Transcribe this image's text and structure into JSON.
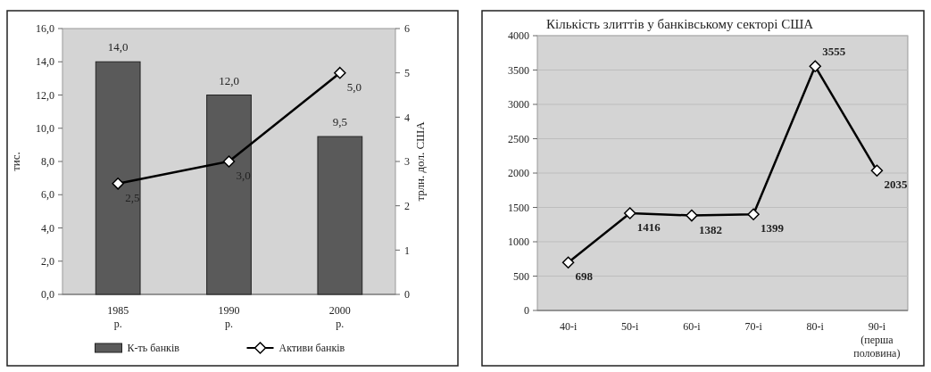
{
  "chart_data": [
    {
      "type": "bar",
      "categories": [
        "1985 р.",
        "1990 р.",
        "2000 р."
      ],
      "ylabel": "тис.",
      "y2label": "трлн. дол. США",
      "ylim": [
        0,
        16
      ],
      "yticks": [
        {
          "value": 0,
          "label": "0,0"
        },
        {
          "value": 2,
          "label": "2,0"
        },
        {
          "value": 4,
          "label": "4,0"
        },
        {
          "value": 6,
          "label": "6,0"
        },
        {
          "value": 8,
          "label": "8,0"
        },
        {
          "value": 10,
          "label": "10,0"
        },
        {
          "value": 12,
          "label": "12,0"
        },
        {
          "value": 14,
          "label": "14,0"
        },
        {
          "value": 16,
          "label": "16,0"
        }
      ],
      "y2lim": [
        0,
        6
      ],
      "y2ticks": [
        0,
        1,
        2,
        3,
        4,
        5,
        6
      ],
      "legend": "bottom",
      "marker": "diamond",
      "series": [
        {
          "name": "К-ть банків",
          "color": "#5a5a5a",
          "values": [
            14.0,
            12.0,
            9.5
          ],
          "value_labels": [
            "14,0",
            "12,0",
            "9,5"
          ]
        },
        {
          "name": "Активи банків",
          "type": "line",
          "axis": "y2",
          "color": "#000000",
          "values": [
            2.5,
            3.0,
            5.0
          ],
          "value_labels": [
            "2,5",
            "3,0",
            "5,0"
          ]
        }
      ]
    },
    {
      "type": "line",
      "title": "Кількість злиттів у банківському секторі США",
      "categories": [
        "40-і",
        "50-і",
        "60-і",
        "70-і",
        "80-і",
        "90-і (перша половина)"
      ],
      "ylim": [
        0,
        4000
      ],
      "yticks": [
        0,
        500,
        1000,
        1500,
        2000,
        2500,
        3000,
        3500,
        4000
      ],
      "grid": "y",
      "marker": "diamond",
      "data_labels": true,
      "series": [
        {
          "color": "#000000",
          "values": [
            698,
            1416,
            1382,
            1399,
            3555,
            2035
          ]
        }
      ]
    }
  ]
}
